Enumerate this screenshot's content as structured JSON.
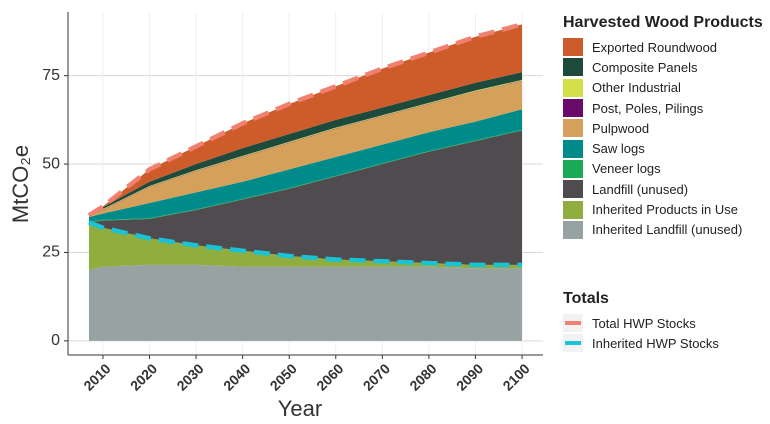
{
  "chart_data": {
    "type": "stacked_area",
    "x_label": "Year",
    "y_label": "MtCO₂e",
    "x": [
      2007,
      2010,
      2020,
      2030,
      2040,
      2050,
      2060,
      2070,
      2080,
      2090,
      2100
    ],
    "xlim": [
      2002.5,
      2104.5
    ],
    "xticks": [
      2010,
      2020,
      2030,
      2040,
      2050,
      2060,
      2070,
      2080,
      2090,
      2100
    ],
    "ylim": [
      -4,
      93
    ],
    "yticks": [
      0,
      25,
      50,
      75
    ],
    "grid": true,
    "legend_title": "Harvested Wood Products",
    "series": [
      {
        "name": "Inherited Landfill (unused)",
        "color": "#97a3a2",
        "values": [
          20,
          21,
          21.5,
          21.5,
          21,
          21,
          21,
          21,
          21,
          20.5,
          20.5
        ]
      },
      {
        "name": "Inherited Products in Use",
        "color": "#8fae3f",
        "values": [
          13.5,
          11,
          7.5,
          5.5,
          4.5,
          3,
          2,
          1.5,
          1,
          1,
          1
        ]
      },
      {
        "name": "Landfill (unused)",
        "color": "#4f4b4f",
        "values": [
          0,
          2,
          5.5,
          10,
          14.5,
          19,
          23.5,
          27.5,
          31.5,
          35,
          38
        ]
      },
      {
        "name": "Veneer logs",
        "color": "#1aaa55",
        "values": [
          0.2,
          0.2,
          0.2,
          0.2,
          0.2,
          0.2,
          0.2,
          0.2,
          0.2,
          0.2,
          0.2
        ]
      },
      {
        "name": "Saw logs",
        "color": "#008b8b",
        "values": [
          1.3,
          1.8,
          4.3,
          4.8,
          4.8,
          5.3,
          5.3,
          5.3,
          5.3,
          5.3,
          5.8
        ]
      },
      {
        "name": "Pulpwood",
        "color": "#d4a05a",
        "values": [
          0.3,
          1,
          4.5,
          6,
          7,
          7.5,
          8,
          8,
          8,
          8.5,
          8
        ]
      },
      {
        "name": "Post, Poles, Pilings",
        "color": "#6a0a6a",
        "values": [
          0.1,
          0.1,
          0.1,
          0.1,
          0.1,
          0.1,
          0.1,
          0.1,
          0.1,
          0.1,
          0.1
        ]
      },
      {
        "name": "Other Industrial",
        "color": "#d4e04a",
        "values": [
          0.2,
          0.2,
          0.2,
          0.2,
          0.2,
          0.2,
          0.2,
          0.2,
          0.2,
          0.2,
          0.2
        ]
      },
      {
        "name": "Composite Panels",
        "color": "#1e4a3c",
        "values": [
          0.1,
          0.5,
          1.2,
          1.7,
          2.2,
          2.2,
          2.2,
          2.2,
          2.2,
          2.2,
          2.2
        ]
      },
      {
        "name": "Exported Roundwood",
        "color": "#cd5c2a",
        "values": [
          0,
          0.2,
          3.5,
          5,
          7,
          8.5,
          9.5,
          11,
          12,
          13,
          13.5
        ]
      }
    ],
    "lines_legend_title": "Totals",
    "lines": [
      {
        "name": "Total HWP Stocks",
        "color": "#f08070",
        "values": [
          35.5,
          38,
          48.5,
          55,
          61.5,
          67,
          72,
          77,
          81.5,
          86,
          89.5
        ]
      },
      {
        "name": "Inherited HWP Stocks",
        "color": "#19c3d5",
        "values": [
          33.5,
          32,
          29,
          27,
          25.5,
          24,
          23,
          22.5,
          22,
          21.5,
          21.5
        ]
      }
    ]
  }
}
